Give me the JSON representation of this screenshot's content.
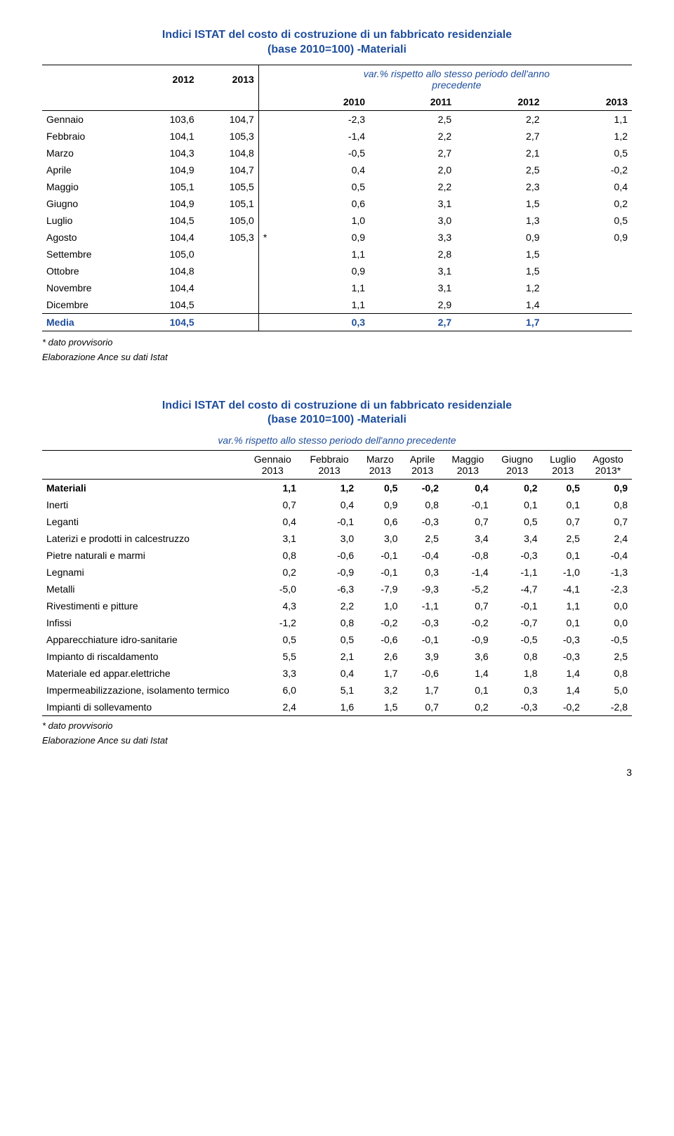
{
  "table1": {
    "title_line1": "Indici ISTAT del costo di costruzione di un fabbricato residenziale",
    "title_line2": "(base 2010=100) -Materiali",
    "var_label_line1": "var.% rispetto allo stesso periodo dell'anno",
    "var_label_line2": "precedente",
    "col_headers_top": [
      "",
      "2012",
      "2013",
      "",
      "",
      "",
      ""
    ],
    "col_headers_bottom": [
      "",
      "",
      "",
      "2010",
      "2011",
      "2012",
      "2013"
    ],
    "rows": [
      {
        "label": "Gennaio",
        "c": [
          "103,6",
          "104,7",
          "",
          "-2,3",
          "2,5",
          "2,2",
          "1,1"
        ]
      },
      {
        "label": "Febbraio",
        "c": [
          "104,1",
          "105,3",
          "",
          "-1,4",
          "2,2",
          "2,7",
          "1,2"
        ]
      },
      {
        "label": "Marzo",
        "c": [
          "104,3",
          "104,8",
          "",
          "-0,5",
          "2,7",
          "2,1",
          "0,5"
        ]
      },
      {
        "label": "Aprile",
        "c": [
          "104,9",
          "104,7",
          "",
          "0,4",
          "2,0",
          "2,5",
          "-0,2"
        ]
      },
      {
        "label": "Maggio",
        "c": [
          "105,1",
          "105,5",
          "",
          "0,5",
          "2,2",
          "2,3",
          "0,4"
        ]
      },
      {
        "label": "Giugno",
        "c": [
          "104,9",
          "105,1",
          "",
          "0,6",
          "3,1",
          "1,5",
          "0,2"
        ]
      },
      {
        "label": "Luglio",
        "c": [
          "104,5",
          "105,0",
          "",
          "1,0",
          "3,0",
          "1,3",
          "0,5"
        ]
      },
      {
        "label": "Agosto",
        "c": [
          "104,4",
          "105,3",
          "*",
          "0,9",
          "3,3",
          "0,9",
          "0,9"
        ]
      },
      {
        "label": "Settembre",
        "c": [
          "105,0",
          "",
          "",
          "1,1",
          "2,8",
          "1,5",
          ""
        ]
      },
      {
        "label": "Ottobre",
        "c": [
          "104,8",
          "",
          "",
          "0,9",
          "3,1",
          "1,5",
          ""
        ]
      },
      {
        "label": "Novembre",
        "c": [
          "104,4",
          "",
          "",
          "1,1",
          "3,1",
          "1,2",
          ""
        ]
      },
      {
        "label": "Dicembre",
        "c": [
          "104,5",
          "",
          "",
          "1,1",
          "2,9",
          "1,4",
          ""
        ]
      }
    ],
    "media": {
      "label": "Media",
      "c": [
        "104,5",
        "",
        "",
        "0,3",
        "2,7",
        "1,7",
        ""
      ]
    },
    "note1": "* dato provvisorio",
    "note2": "Elaborazione Ance su dati Istat"
  },
  "table2": {
    "title_line1": "Indici ISTAT del costo di costruzione di un fabbricato residenziale",
    "title_line2": "(base 2010=100) -Materiali",
    "subtitle": "var.% rispetto allo stesso periodo dell'anno precedente",
    "col_headers": [
      {
        "l1": "Gennaio",
        "l2": "2013"
      },
      {
        "l1": "Febbraio",
        "l2": "2013"
      },
      {
        "l1": "Marzo",
        "l2": "2013"
      },
      {
        "l1": "Aprile",
        "l2": "2013"
      },
      {
        "l1": "Maggio",
        "l2": "2013"
      },
      {
        "l1": "Giugno",
        "l2": "2013"
      },
      {
        "l1": "Luglio",
        "l2": "2013"
      },
      {
        "l1": "Agosto",
        "l2": "2013*"
      }
    ],
    "rows": [
      {
        "label": "Materiali",
        "bold": true,
        "c": [
          "1,1",
          "1,2",
          "0,5",
          "-0,2",
          "0,4",
          "0,2",
          "0,5",
          "0,9"
        ]
      },
      {
        "label": "Inerti",
        "c": [
          "0,7",
          "0,4",
          "0,9",
          "0,8",
          "-0,1",
          "0,1",
          "0,1",
          "0,8"
        ]
      },
      {
        "label": "Leganti",
        "c": [
          "0,4",
          "-0,1",
          "0,6",
          "-0,3",
          "0,7",
          "0,5",
          "0,7",
          "0,7"
        ]
      },
      {
        "label": "Laterizi e prodotti in calcestruzzo",
        "c": [
          "3,1",
          "3,0",
          "3,0",
          "2,5",
          "3,4",
          "3,4",
          "2,5",
          "2,4"
        ]
      },
      {
        "label": "Pietre naturali e marmi",
        "c": [
          "0,8",
          "-0,6",
          "-0,1",
          "-0,4",
          "-0,8",
          "-0,3",
          "0,1",
          "-0,4"
        ]
      },
      {
        "label": "Legnami",
        "c": [
          "0,2",
          "-0,9",
          "-0,1",
          "0,3",
          "-1,4",
          "-1,1",
          "-1,0",
          "-1,3"
        ]
      },
      {
        "label": "Metalli",
        "c": [
          "-5,0",
          "-6,3",
          "-7,9",
          "-9,3",
          "-5,2",
          "-4,7",
          "-4,1",
          "-2,3"
        ]
      },
      {
        "label": "Rivestimenti e pitture",
        "c": [
          "4,3",
          "2,2",
          "1,0",
          "-1,1",
          "0,7",
          "-0,1",
          "1,1",
          "0,0"
        ]
      },
      {
        "label": "Infissi",
        "c": [
          "-1,2",
          "0,8",
          "-0,2",
          "-0,3",
          "-0,2",
          "-0,7",
          "0,1",
          "0,0"
        ]
      },
      {
        "label": "Apparecchiature idro-sanitarie",
        "c": [
          "0,5",
          "0,5",
          "-0,6",
          "-0,1",
          "-0,9",
          "-0,5",
          "-0,3",
          "-0,5"
        ]
      },
      {
        "label": "Impianto di riscaldamento",
        "c": [
          "5,5",
          "2,1",
          "2,6",
          "3,9",
          "3,6",
          "0,8",
          "-0,3",
          "2,5"
        ]
      },
      {
        "label": "Materiale ed appar.elettriche",
        "c": [
          "3,3",
          "0,4",
          "1,7",
          "-0,6",
          "1,4",
          "1,8",
          "1,4",
          "0,8"
        ]
      },
      {
        "label": "Impermeabilizzazione, isolamento termico",
        "c": [
          "6,0",
          "5,1",
          "3,2",
          "1,7",
          "0,1",
          "0,3",
          "1,4",
          "5,0"
        ]
      },
      {
        "label": "Impianti di sollevamento",
        "last": true,
        "c": [
          "2,4",
          "1,6",
          "1,5",
          "0,7",
          "0,2",
          "-0,3",
          "-0,2",
          "-2,8"
        ]
      }
    ],
    "note1": "* dato provvisorio",
    "note2": "Elaborazione Ance su dati Istat"
  },
  "page_number": "3"
}
